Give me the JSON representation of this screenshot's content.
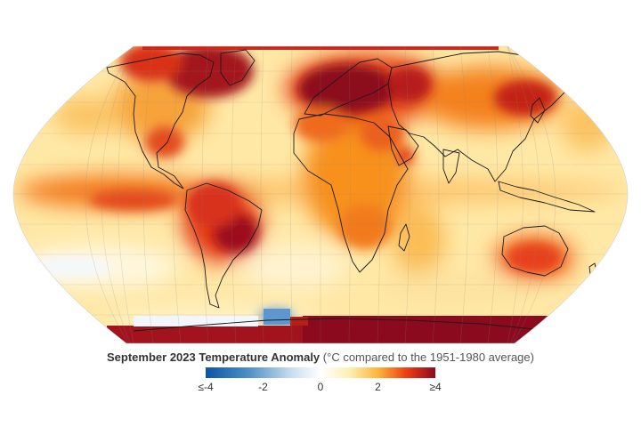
{
  "caption": {
    "title": "September 2023 Temperature Anomaly",
    "subtitle": "(°C compared to the 1951-1980 average)"
  },
  "colorbar": {
    "min": -4,
    "max": 4,
    "ticks": [
      {
        "value": -4,
        "label": "≤-4"
      },
      {
        "value": -2,
        "label": "-2"
      },
      {
        "value": 0,
        "label": "0"
      },
      {
        "value": 2,
        "label": "2"
      },
      {
        "value": 4,
        "label": "≥4"
      }
    ],
    "stops": [
      {
        "value": -4,
        "color": "#0b55a6"
      },
      {
        "value": -2.5,
        "color": "#4f8fc7"
      },
      {
        "value": -1,
        "color": "#c9def0"
      },
      {
        "value": 0,
        "color": "#ffffff"
      },
      {
        "value": 1,
        "color": "#fff0b4"
      },
      {
        "value": 2,
        "color": "#fdb53c"
      },
      {
        "value": 3,
        "color": "#ee3d12"
      },
      {
        "value": 4,
        "color": "#8c0a1e"
      }
    ]
  },
  "map": {
    "projection": "Robinson",
    "gridlines": true,
    "base_color": "#ffe8a6"
  }
}
